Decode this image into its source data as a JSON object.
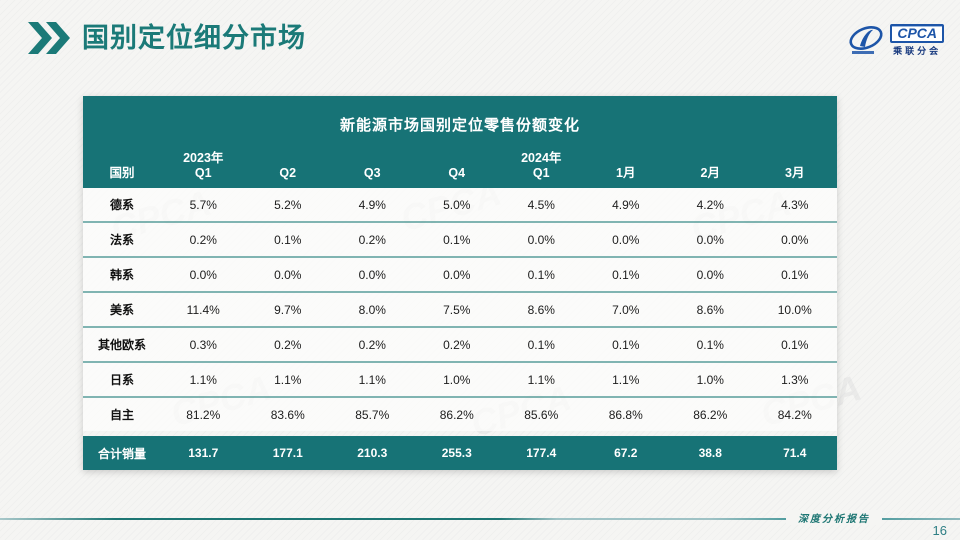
{
  "slide": {
    "title": "国别定位细分市场",
    "footer_text": "深度分析报告",
    "page_number": "16"
  },
  "logo": {
    "text": "CPCA",
    "subtext": "乘联分会"
  },
  "watermark": "CPCA",
  "colors": {
    "teal": "#177376",
    "title_teal": "#1b7a78",
    "logo_blue": "#1d55a8",
    "footer_teal": "#1d7673"
  },
  "table": {
    "title": "新能源市场国别定位零售份额变化",
    "header": {
      "first_col": "国别",
      "columns": [
        {
          "line1": "2023年",
          "line2": "Q1"
        },
        {
          "line1": "",
          "line2": "Q2"
        },
        {
          "line1": "",
          "line2": "Q3"
        },
        {
          "line1": "",
          "line2": "Q4"
        },
        {
          "line1": "2024年",
          "line2": "Q1"
        },
        {
          "line1": "",
          "line2": "1月"
        },
        {
          "line1": "",
          "line2": "2月"
        },
        {
          "line1": "",
          "line2": "3月"
        }
      ]
    },
    "rows": [
      {
        "label": "德系",
        "values": [
          "5.7%",
          "5.2%",
          "4.9%",
          "5.0%",
          "4.5%",
          "4.9%",
          "4.2%",
          "4.3%"
        ]
      },
      {
        "label": "法系",
        "values": [
          "0.2%",
          "0.1%",
          "0.2%",
          "0.1%",
          "0.0%",
          "0.0%",
          "0.0%",
          "0.0%"
        ]
      },
      {
        "label": "韩系",
        "values": [
          "0.0%",
          "0.0%",
          "0.0%",
          "0.0%",
          "0.1%",
          "0.1%",
          "0.0%",
          "0.1%"
        ]
      },
      {
        "label": "美系",
        "values": [
          "11.4%",
          "9.7%",
          "8.0%",
          "7.5%",
          "8.6%",
          "7.0%",
          "8.6%",
          "10.0%"
        ]
      },
      {
        "label": "其他欧系",
        "values": [
          "0.3%",
          "0.2%",
          "0.2%",
          "0.2%",
          "0.1%",
          "0.1%",
          "0.1%",
          "0.1%"
        ]
      },
      {
        "label": "日系",
        "values": [
          "1.1%",
          "1.1%",
          "1.1%",
          "1.0%",
          "1.1%",
          "1.1%",
          "1.0%",
          "1.3%"
        ]
      },
      {
        "label": "自主",
        "values": [
          "81.2%",
          "83.6%",
          "85.7%",
          "86.2%",
          "85.6%",
          "86.8%",
          "86.2%",
          "84.2%"
        ]
      }
    ],
    "total_row": {
      "label": "合计销量",
      "values": [
        "131.7",
        "177.1",
        "210.3",
        "255.3",
        "177.4",
        "67.2",
        "38.8",
        "71.4"
      ]
    }
  }
}
